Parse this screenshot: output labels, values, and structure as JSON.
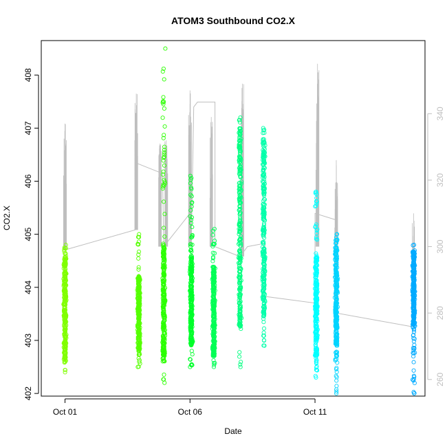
{
  "chart_data": {
    "type": "scatter",
    "title": "ATOM3 Southbound CO2.X",
    "xlabel": "Date",
    "ylabel": "CO2.X",
    "x_ticks": [
      {
        "value": 1,
        "label": "Oct 01"
      },
      {
        "value": 6,
        "label": "Oct 06"
      },
      {
        "value": 11,
        "label": "Oct 11"
      }
    ],
    "xlim": [
      0.05,
      15.4
    ],
    "ylim": [
      401.95,
      408.65
    ],
    "y_ticks": [
      402,
      403,
      404,
      405,
      406,
      407,
      408
    ],
    "y2_ticks": [
      260,
      280,
      300,
      320,
      340
    ],
    "y2lim": [
      255.0,
      362.0
    ],
    "grid": false,
    "point_clusters": [
      {
        "x": 1.0,
        "y_min": 402.4,
        "y_max": 404.8,
        "dense_min": 402.6,
        "dense_max": 404.6,
        "color": "#80ff00"
      },
      {
        "x": 3.95,
        "y_min": 402.5,
        "y_max": 405.0,
        "dense_min": 402.8,
        "dense_max": 404.2,
        "color": "#55ff00"
      },
      {
        "x": 4.95,
        "y_min": 402.2,
        "y_max": 408.5,
        "dense_min": 402.6,
        "dense_max": 404.8,
        "color": "#2bff00"
      },
      {
        "x": 6.05,
        "y_min": 402.5,
        "y_max": 406.1,
        "dense_min": 402.9,
        "dense_max": 404.6,
        "color": "#00ff2b"
      },
      {
        "x": 6.95,
        "y_min": 402.5,
        "y_max": 405.1,
        "dense_min": 402.7,
        "dense_max": 404.4,
        "color": "#00ff55"
      },
      {
        "x": 8.0,
        "y_min": 402.5,
        "y_max": 407.2,
        "dense_min": 403.2,
        "dense_max": 407.0,
        "color": "#00ff80"
      },
      {
        "x": 8.95,
        "y_min": 402.9,
        "y_max": 407.0,
        "dense_min": 403.4,
        "dense_max": 406.8,
        "color": "#00ffaa"
      },
      {
        "x": 11.05,
        "y_min": 402.3,
        "y_max": 405.8,
        "dense_min": 402.7,
        "dense_max": 404.6,
        "color": "#00ffff"
      },
      {
        "x": 11.85,
        "y_min": 402.0,
        "y_max": 405.0,
        "dense_min": 402.9,
        "dense_max": 404.9,
        "color": "#00d4ff"
      },
      {
        "x": 14.95,
        "y_min": 402.0,
        "y_max": 404.8,
        "dense_min": 403.3,
        "dense_max": 404.7,
        "color": "#00aaff"
      }
    ],
    "secondary_series": {
      "color": "#bebebe",
      "path": [
        [
          1.0,
          299.0
        ],
        [
          3.8,
          305.0
        ],
        [
          3.9,
          325.0
        ],
        [
          4.9,
          322.0
        ],
        [
          4.95,
          300.0
        ],
        [
          6.0,
          310.0
        ],
        [
          6.05,
          300.0
        ],
        [
          6.15,
          342.0
        ],
        [
          6.3,
          343.5
        ],
        [
          7.0,
          343.5
        ],
        [
          7.0,
          300.0
        ],
        [
          8.0,
          297.0
        ],
        [
          8.3,
          300.0
        ],
        [
          9.0,
          301.0
        ],
        [
          9.0,
          285.0
        ],
        [
          11.0,
          283.0
        ],
        [
          11.0,
          310.0
        ],
        [
          11.85,
          308.0
        ],
        [
          11.85,
          280.0
        ],
        [
          14.8,
          276.0
        ],
        [
          14.95,
          276.0
        ]
      ],
      "spikes": [
        {
          "x": 1.0,
          "base": 299.0,
          "peak": 337.0
        },
        {
          "x": 3.85,
          "base": 305.0,
          "peak": 346.0
        },
        {
          "x": 4.8,
          "base": 300.0,
          "peak": 331.0
        },
        {
          "x": 5.05,
          "base": 300.0,
          "peak": 332.0
        },
        {
          "x": 6.0,
          "base": 300.0,
          "peak": 347.0
        },
        {
          "x": 6.85,
          "base": 300.0,
          "peak": 339.0
        },
        {
          "x": 8.1,
          "base": 297.0,
          "peak": 349.0
        },
        {
          "x": 11.1,
          "base": 300.0,
          "peak": 355.0
        },
        {
          "x": 11.85,
          "base": 283.0,
          "peak": 326.0
        },
        {
          "x": 14.95,
          "base": 276.0,
          "peak": 310.0
        }
      ]
    }
  }
}
